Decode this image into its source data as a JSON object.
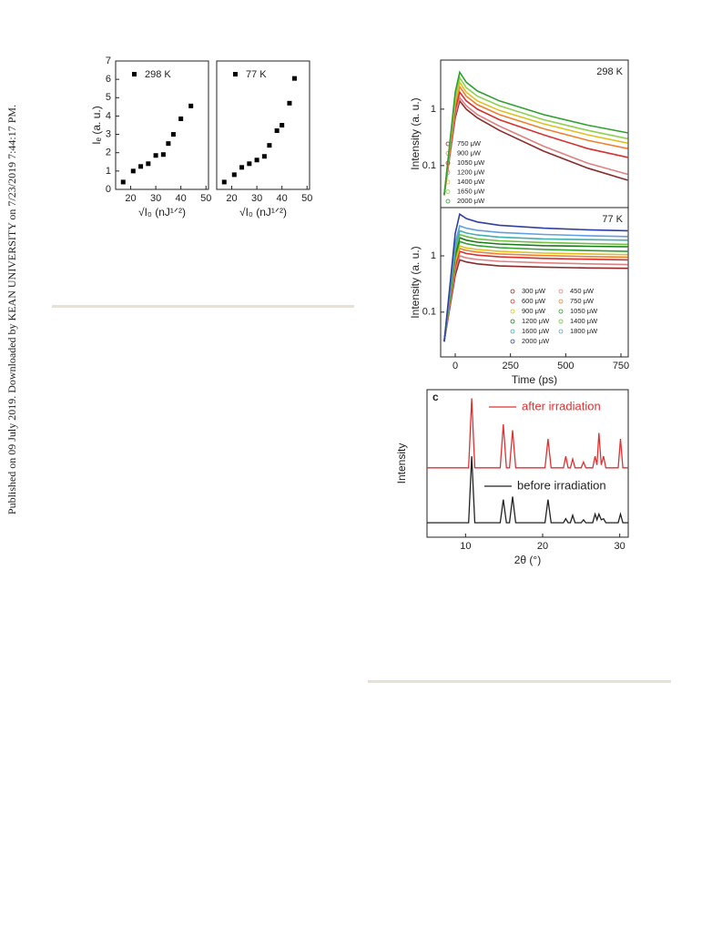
{
  "sidebar": "Published on 09 July 2019. Downloaded by KEAN UNIVERSITY on 7/23/2019 7:44:17 PM.",
  "chart_data": [
    {
      "type": "scatter",
      "ylabel": "Iₑ (a. u.)",
      "xlabel": "√I₀ (nJ¹ᐟ²)",
      "xlim": [
        14,
        51
      ],
      "xticks": [
        20,
        30,
        40,
        50
      ],
      "ylim": [
        0,
        7
      ],
      "yticks": [
        0,
        1,
        2,
        3,
        4,
        5,
        6,
        7
      ],
      "series": [
        {
          "name": "298 K",
          "color": "#000000",
          "x": [
            17,
            21,
            24,
            27,
            30,
            33,
            35,
            37,
            40,
            44
          ],
          "values": [
            0.4,
            1.0,
            1.25,
            1.4,
            1.85,
            1.9,
            2.5,
            3.0,
            3.85,
            4.55
          ]
        }
      ]
    },
    {
      "type": "scatter",
      "xlabel": "√I₀ (nJ¹ᐟ²)",
      "xlim": [
        14,
        51
      ],
      "xticks": [
        20,
        30,
        40,
        50
      ],
      "ylim": [
        0,
        7
      ],
      "series": [
        {
          "name": "77 K",
          "color": "#000000",
          "x": [
            17,
            21,
            24,
            27,
            30,
            33,
            35,
            38,
            40,
            43,
            45
          ],
          "values": [
            0.4,
            0.8,
            1.2,
            1.4,
            1.6,
            1.8,
            2.4,
            3.2,
            3.5,
            4.7,
            6.05
          ]
        }
      ]
    },
    {
      "type": "line",
      "label": "298 K",
      "ylabel": "Intensity (a. u.)",
      "log_y": true,
      "xlim": [
        -66,
        783
      ],
      "ylim": [
        0.018,
        7.4
      ],
      "yticks": [
        0.1,
        1
      ],
      "x": [
        -50,
        0,
        20,
        50,
        100,
        200,
        400,
        600,
        780
      ],
      "series": [
        {
          "name": "750 μW",
          "color": "#8b2c2c",
          "values": [
            0.03,
            0.7,
            1.4,
            1.0,
            0.7,
            0.42,
            0.18,
            0.09,
            0.055
          ]
        },
        {
          "name": "900 μW",
          "color": "#e08080",
          "values": [
            0.03,
            0.8,
            1.6,
            1.15,
            0.8,
            0.5,
            0.22,
            0.11,
            0.07
          ]
        },
        {
          "name": "1050 μW",
          "color": "#d83030",
          "values": [
            0.03,
            1.0,
            2.0,
            1.4,
            1.0,
            0.65,
            0.35,
            0.2,
            0.14
          ]
        },
        {
          "name": "1200 μW",
          "color": "#f08030",
          "values": [
            0.03,
            1.2,
            2.5,
            1.7,
            1.2,
            0.8,
            0.45,
            0.28,
            0.2
          ]
        },
        {
          "name": "1400 μW",
          "color": "#e0c020",
          "values": [
            0.03,
            1.4,
            3.0,
            2.0,
            1.4,
            0.95,
            0.55,
            0.35,
            0.25
          ]
        },
        {
          "name": "1650 μW",
          "color": "#90d050",
          "values": [
            0.03,
            1.6,
            3.6,
            2.4,
            1.7,
            1.15,
            0.65,
            0.42,
            0.3
          ]
        },
        {
          "name": "2000 μW",
          "color": "#30a030",
          "values": [
            0.03,
            2.0,
            4.5,
            3.0,
            2.1,
            1.4,
            0.8,
            0.52,
            0.38
          ]
        }
      ]
    },
    {
      "type": "line",
      "label": "77 K",
      "ylabel": "Intensity (a. u.)",
      "xlabel": "Time (ps)",
      "log_y": true,
      "xlim": [
        -66,
        783
      ],
      "xticks": [
        0,
        250,
        500,
        750
      ],
      "ylim": [
        0.016,
        7.2
      ],
      "yticks": [
        0.1,
        1
      ],
      "x": [
        -50,
        0,
        20,
        50,
        100,
        200,
        400,
        600,
        780
      ],
      "series": [
        {
          "name": "300 μW",
          "color": "#8b2c2c",
          "values": [
            0.03,
            0.45,
            0.85,
            0.78,
            0.72,
            0.66,
            0.63,
            0.61,
            0.6
          ]
        },
        {
          "name": "450 μW",
          "color": "#e08080",
          "values": [
            0.03,
            0.55,
            1.0,
            0.92,
            0.86,
            0.8,
            0.75,
            0.72,
            0.7
          ]
        },
        {
          "name": "600 μW",
          "color": "#d83030",
          "values": [
            0.03,
            0.65,
            1.2,
            1.1,
            1.03,
            0.96,
            0.9,
            0.87,
            0.85
          ]
        },
        {
          "name": "750 μW",
          "color": "#f08030",
          "values": [
            0.03,
            0.75,
            1.35,
            1.25,
            1.17,
            1.08,
            1.01,
            0.97,
            0.95
          ]
        },
        {
          "name": "900 μW",
          "color": "#e0c020",
          "values": [
            0.03,
            0.8,
            1.5,
            1.38,
            1.3,
            1.2,
            1.12,
            1.08,
            1.05
          ]
        },
        {
          "name": "1050 μW",
          "color": "#30a030",
          "values": [
            0.03,
            0.95,
            1.8,
            1.65,
            1.52,
            1.4,
            1.3,
            1.24,
            1.2
          ]
        },
        {
          "name": "1200 μW",
          "color": "#1a7a1a",
          "values": [
            0.03,
            1.1,
            2.1,
            1.9,
            1.75,
            1.62,
            1.52,
            1.48,
            1.45
          ]
        },
        {
          "name": "1400 μW",
          "color": "#70c040",
          "values": [
            0.03,
            1.25,
            2.4,
            2.2,
            2.0,
            1.85,
            1.72,
            1.65,
            1.6
          ]
        },
        {
          "name": "1600 μW",
          "color": "#40b0b0",
          "values": [
            0.03,
            1.45,
            2.8,
            2.55,
            2.35,
            2.15,
            2.0,
            1.94,
            1.9
          ]
        },
        {
          "name": "1800 μW",
          "color": "#60a0e0",
          "values": [
            0.03,
            1.7,
            3.4,
            3.1,
            2.85,
            2.6,
            2.4,
            2.28,
            2.2
          ]
        },
        {
          "name": "2000 μW",
          "color": "#3040a0",
          "values": [
            0.03,
            2.5,
            5.5,
            4.6,
            4.0,
            3.5,
            3.1,
            2.9,
            2.8
          ]
        }
      ]
    },
    {
      "type": "line",
      "label": "c",
      "ylabel": "Intensity",
      "xlabel": "2θ (°)",
      "xlim": [
        5,
        31.1
      ],
      "xticks": [
        10,
        20,
        30
      ],
      "ylim": [
        -0.2,
        2.35
      ],
      "x": [
        5,
        10.4,
        10.8,
        11.2,
        14.5,
        14.9,
        15.3,
        15.7,
        16.1,
        16.5,
        20.3,
        20.7,
        21.1,
        22.7,
        23.0,
        23.3,
        23.6,
        23.9,
        24.2,
        25.0,
        25.3,
        25.6,
        26.5,
        26.8,
        27.05,
        27.3,
        27.6,
        27.9,
        28.2,
        29.8,
        30.1,
        30.4,
        31.1
      ],
      "series": [
        {
          "name": "after irradiation",
          "color": "#e03030",
          "values": [
            1,
            1,
            2.2,
            1,
            1,
            1.75,
            1,
            1,
            1.65,
            1,
            1,
            1.5,
            1,
            1,
            1.2,
            1,
            1,
            1.15,
            1,
            1,
            1.1,
            1,
            1,
            1.2,
            1.05,
            1.6,
            1.05,
            1.2,
            1,
            1,
            1.5,
            1,
            1
          ]
        },
        {
          "name": "before irradiation",
          "color": "#222222",
          "values": [
            0.05,
            0.05,
            1.2,
            0.05,
            0.05,
            0.45,
            0.05,
            0.05,
            0.5,
            0.05,
            0.05,
            0.45,
            0.05,
            0.05,
            0.12,
            0.05,
            0.05,
            0.18,
            0.05,
            0.05,
            0.1,
            0.05,
            0.05,
            0.2,
            0.1,
            0.2,
            0.1,
            0.12,
            0.05,
            0.05,
            0.2,
            0.05,
            0.05
          ]
        }
      ]
    }
  ]
}
